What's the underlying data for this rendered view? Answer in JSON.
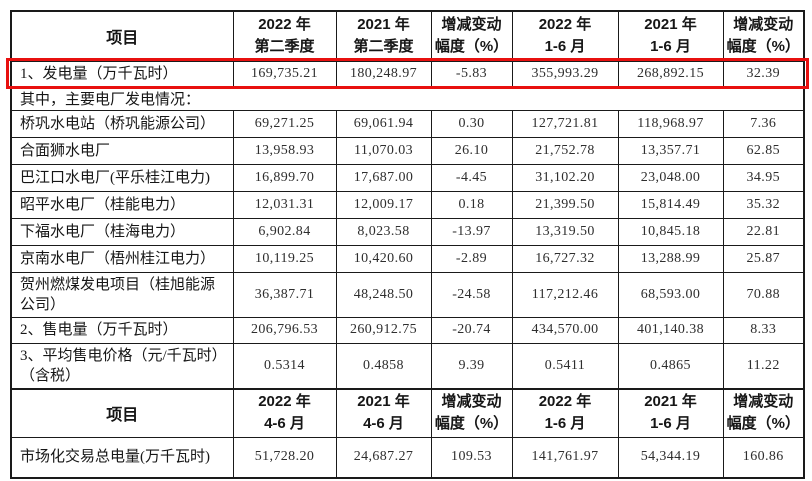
{
  "colors": {
    "highlight_border": "#e8100f",
    "grid": "#1a1a1a",
    "label_text": "#161616",
    "value_text": "#2e2e2e",
    "background": "#ffffff"
  },
  "table": {
    "rows": [
      {
        "type": "header",
        "item": "项目",
        "cols": [
          [
            "2022 年",
            "第二季度"
          ],
          [
            "2021 年",
            "第二季度"
          ],
          [
            "增减变动",
            "幅度（%）"
          ],
          [
            "2022 年",
            "1-6 月"
          ],
          [
            "2021 年",
            "1-6 月"
          ],
          [
            "增减变动",
            "幅度（%）"
          ]
        ]
      },
      {
        "type": "data",
        "highlight": true,
        "label": "1、发电量（万千瓦时）",
        "values": [
          "169,735.21",
          "180,248.97",
          "-5.83",
          "355,993.29",
          "268,892.15",
          "32.39"
        ]
      },
      {
        "type": "section",
        "label": "其中，主要电厂发电情况："
      },
      {
        "type": "data",
        "label": "桥巩水电站（桥巩能源公司）",
        "values": [
          "69,271.25",
          "69,061.94",
          "0.30",
          "127,721.81",
          "118,968.97",
          "7.36"
        ]
      },
      {
        "type": "data",
        "label": "合面狮水电厂",
        "values": [
          "13,958.93",
          "11,070.03",
          "26.10",
          "21,752.78",
          "13,357.71",
          "62.85"
        ]
      },
      {
        "type": "data",
        "label": "巴江口水电厂(平乐桂江电力)",
        "values": [
          "16,899.70",
          "17,687.00",
          "-4.45",
          "31,102.20",
          "23,048.00",
          "34.95"
        ]
      },
      {
        "type": "data",
        "label": "昭平水电厂（桂能电力）",
        "values": [
          "12,031.31",
          "12,009.17",
          "0.18",
          "21,399.50",
          "15,814.49",
          "35.32"
        ]
      },
      {
        "type": "data",
        "label": "下福水电厂（桂海电力）",
        "values": [
          "6,902.84",
          "8,023.58",
          "-13.97",
          "13,319.50",
          "10,845.18",
          "22.81"
        ]
      },
      {
        "type": "data",
        "label": "京南水电厂（梧州桂江电力）",
        "values": [
          "10,119.25",
          "10,420.60",
          "-2.89",
          "16,727.32",
          "13,288.99",
          "25.87"
        ]
      },
      {
        "type": "data",
        "label": "贺州燃煤发电项目（桂旭能源公司）",
        "values": [
          "36,387.71",
          "48,248.50",
          "-24.58",
          "117,212.46",
          "68,593.00",
          "70.88"
        ]
      },
      {
        "type": "data",
        "label": "2、售电量（万千瓦时）",
        "values": [
          "206,796.53",
          "260,912.75",
          "-20.74",
          "434,570.00",
          "401,140.38",
          "8.33"
        ]
      },
      {
        "type": "data",
        "label": "3、平均售电价格（元/千瓦时）（含税）",
        "values": [
          "0.5314",
          "0.4858",
          "9.39",
          "0.5411",
          "0.4865",
          "11.22"
        ]
      },
      {
        "type": "header",
        "item": "项目",
        "cols": [
          [
            "2022 年",
            "4-6 月"
          ],
          [
            "2021 年",
            "4-6 月"
          ],
          [
            "增减变动",
            "幅度（%）"
          ],
          [
            "2022 年",
            "1-6 月"
          ],
          [
            "2021 年",
            "1-6 月"
          ],
          [
            "增减变动",
            "幅度（%）"
          ]
        ]
      },
      {
        "type": "data",
        "label": "市场化交易总电量(万千瓦时)",
        "values": [
          "51,728.20",
          "24,687.27",
          "109.53",
          "141,761.97",
          "54,344.19",
          "160.86"
        ]
      }
    ]
  }
}
